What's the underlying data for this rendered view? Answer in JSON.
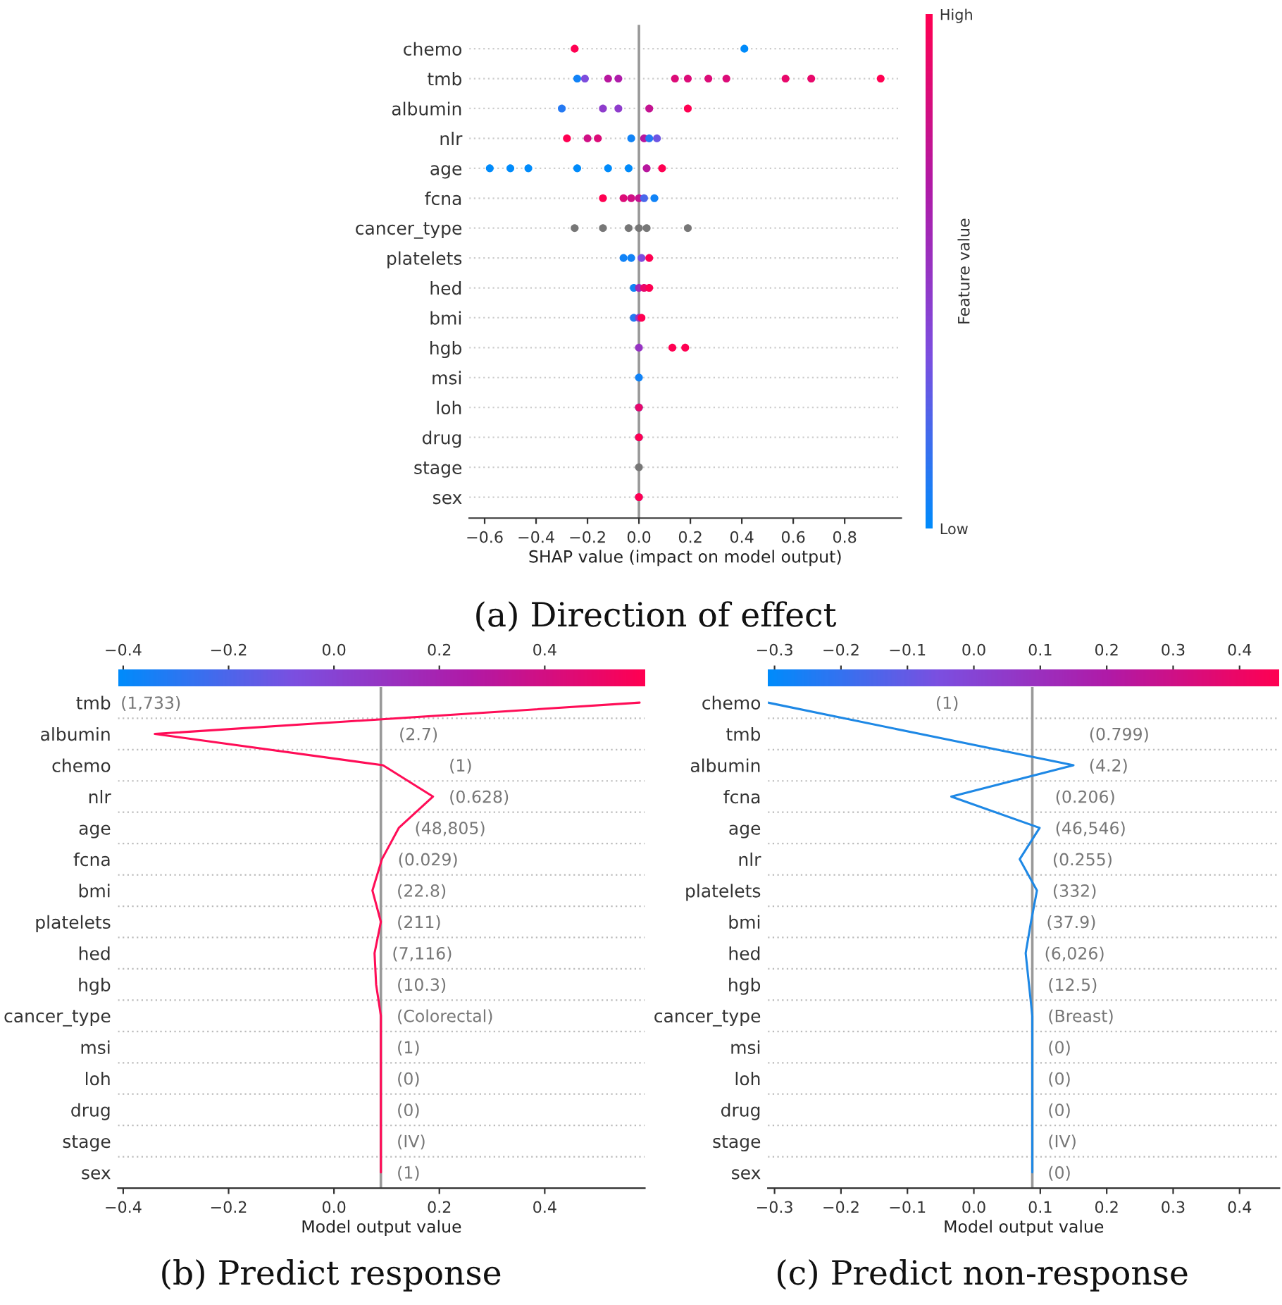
{
  "chart_data": [
    {
      "type": "scatter",
      "orientation": "horizontal",
      "title": "(a) Direction of effect",
      "xlabel": "SHAP value (impact on model output)",
      "clabel": "Feature value",
      "categories": [
        "chemo",
        "tmb",
        "albumin",
        "nlr",
        "age",
        "fcna",
        "cancer_type",
        "platelets",
        "hed",
        "bmi",
        "hgb",
        "msi",
        "loh",
        "drug",
        "stage",
        "sex"
      ],
      "series": [
        {
          "x": [
            "chemo",
            "chemo",
            "tmb",
            "tmb",
            "tmb",
            "tmb",
            "tmb",
            "tmb",
            "tmb",
            "tmb",
            "tmb",
            "tmb",
            "tmb",
            "albumin",
            "albumin",
            "albumin",
            "albumin",
            "albumin",
            "nlr",
            "nlr",
            "nlr",
            "nlr",
            "nlr",
            "nlr",
            "nlr",
            "age",
            "age",
            "age",
            "age",
            "age",
            "age",
            "age",
            "age",
            "fcna",
            "fcna",
            "fcna",
            "fcna",
            "fcna",
            "fcna",
            "cancer_type",
            "cancer_type",
            "cancer_type",
            "cancer_type",
            "cancer_type",
            "cancer_type",
            "platelets",
            "platelets",
            "platelets",
            "platelets",
            "hed",
            "hed",
            "hed",
            "hed",
            "bmi",
            "bmi",
            "bmi",
            "hgb",
            "hgb",
            "hgb",
            "msi",
            "loh",
            "loh",
            "drug",
            "drug",
            "stage",
            "sex",
            "sex"
          ],
          "values": [
            -0.25,
            0.41,
            -0.24,
            -0.21,
            -0.12,
            -0.08,
            0.14,
            0.19,
            0.27,
            0.34,
            0.57,
            0.67,
            0.94,
            -0.3,
            -0.14,
            -0.08,
            0.04,
            0.19,
            -0.28,
            -0.2,
            -0.16,
            -0.03,
            0.02,
            0.04,
            0.07,
            -0.58,
            -0.5,
            -0.43,
            -0.24,
            -0.12,
            -0.04,
            0.03,
            0.09,
            -0.14,
            -0.06,
            -0.03,
            0.0,
            0.02,
            0.06,
            -0.25,
            -0.14,
            -0.04,
            0.0,
            0.03,
            0.19,
            -0.06,
            -0.03,
            0.01,
            0.04,
            -0.02,
            0.0,
            0.02,
            0.04,
            -0.02,
            0.0,
            0.01,
            0.0,
            0.13,
            0.18,
            0.0,
            0.0,
            0.0,
            0.0,
            0.0,
            0.0,
            0.0,
            0.0
          ],
          "cvalues": [
            1,
            0,
            0.05,
            0.35,
            0.7,
            0.65,
            0.85,
            0.85,
            0.85,
            0.85,
            0.9,
            0.9,
            1,
            0.1,
            0.45,
            0.45,
            0.75,
            1,
            1,
            0.8,
            0.85,
            0.05,
            0.7,
            0.1,
            0.3,
            0,
            0,
            0,
            0,
            0,
            0,
            0.7,
            1,
            1,
            0.85,
            0.8,
            0.75,
            0.2,
            0.05,
            null,
            null,
            null,
            null,
            null,
            null,
            0.05,
            0.05,
            0.35,
            1,
            0.05,
            0.6,
            0.9,
            1,
            0.1,
            0.5,
            1,
            0.5,
            1,
            1,
            0.05,
            0.05,
            0.9,
            0.05,
            1,
            null,
            0.3,
            1
          ]
        }
      ],
      "xlim": [
        -0.66,
        1.02
      ],
      "xticks": [
        {
          "value": -0.6,
          "label": "−0.6"
        },
        {
          "value": -0.4,
          "label": "−0.4"
        },
        {
          "value": -0.2,
          "label": "−0.2"
        },
        {
          "value": 0,
          "label": "0.0"
        },
        {
          "value": 0.2,
          "label": "0.2"
        },
        {
          "value": 0.4,
          "label": "0.4"
        },
        {
          "value": 0.6,
          "label": "0.6"
        },
        {
          "value": 0.8,
          "label": "0.8"
        }
      ],
      "clim": [
        0,
        1
      ],
      "cticks": [
        {
          "value": 0,
          "label": "Low"
        },
        {
          "value": 1,
          "label": "High"
        }
      ],
      "ref_lines": [
        {
          "axis": "x",
          "value": 0,
          "color": "#999999"
        }
      ],
      "grid": "y",
      "marker": "circle"
    },
    {
      "type": "line",
      "orientation": "horizontal",
      "title": "(b) Predict response",
      "xlabel": "Model output value",
      "categories": [
        "tmb",
        "albumin",
        "chemo",
        "nlr",
        "age",
        "fcna",
        "bmi",
        "platelets",
        "hed",
        "hgb",
        "cancer_type",
        "msi",
        "loh",
        "drug",
        "stage",
        "sex"
      ],
      "series": [
        {
          "color": "#ff0d57",
          "values": [
            0.58,
            -0.34,
            0.093,
            0.188,
            0.123,
            0.091,
            0.073,
            0.089,
            0.077,
            0.08,
            0.089,
            0.089,
            0.089,
            0.089,
            0.089,
            0.089
          ]
        }
      ],
      "xlim": [
        -0.41,
        0.59
      ],
      "xticks": [
        {
          "value": -0.4,
          "label": "−0.4"
        },
        {
          "value": -0.2,
          "label": "−0.2"
        },
        {
          "value": 0,
          "label": "0.0"
        },
        {
          "value": 0.2,
          "label": "0.2"
        },
        {
          "value": 0.4,
          "label": "0.4"
        }
      ],
      "clim": [
        -0.41,
        0.59
      ],
      "cticks": [
        {
          "value": -0.4,
          "label": "−0.4"
        },
        {
          "value": -0.2,
          "label": "−0.2"
        },
        {
          "value": 0,
          "label": "0.0"
        },
        {
          "value": 0.2,
          "label": "0.2"
        },
        {
          "value": 0.4,
          "label": "0.4"
        }
      ],
      "ref_lines": [
        {
          "axis": "x",
          "value": 0.089,
          "color": "#999999"
        }
      ],
      "annotations": [
        "(1,733)",
        "(2.7)",
        "(1)",
        "(0.628)",
        "(48,805)",
        "(0.029)",
        "(22.8)",
        "(211)",
        "(7,116)",
        "(10.3)",
        "(Colorectal)",
        "(1)",
        "(0)",
        "(0)",
        "(IV)",
        "(1)"
      ],
      "grid": "y"
    },
    {
      "type": "line",
      "orientation": "horizontal",
      "title": "(c) Predict non-response",
      "xlabel": "Model output value",
      "categories": [
        "chemo",
        "tmb",
        "albumin",
        "fcna",
        "age",
        "nlr",
        "platelets",
        "bmi",
        "hed",
        "hgb",
        "cancer_type",
        "msi",
        "loh",
        "drug",
        "stage",
        "sex"
      ],
      "series": [
        {
          "color": "#1e88e5",
          "values": [
            -0.31,
            -0.081,
            0.15,
            -0.034,
            0.099,
            0.069,
            0.095,
            0.086,
            0.078,
            0.083,
            0.088,
            0.088,
            0.088,
            0.088,
            0.088,
            0.088
          ]
        }
      ],
      "xlim": [
        -0.31,
        0.46
      ],
      "xticks": [
        {
          "value": -0.3,
          "label": "−0.3"
        },
        {
          "value": -0.2,
          "label": "−0.2"
        },
        {
          "value": -0.1,
          "label": "−0.1"
        },
        {
          "value": 0,
          "label": "0.0"
        },
        {
          "value": 0.1,
          "label": "0.1"
        },
        {
          "value": 0.2,
          "label": "0.2"
        },
        {
          "value": 0.3,
          "label": "0.3"
        },
        {
          "value": 0.4,
          "label": "0.4"
        }
      ],
      "clim": [
        -0.31,
        0.46
      ],
      "cticks": [
        {
          "value": -0.3,
          "label": "−0.3"
        },
        {
          "value": -0.2,
          "label": "−0.2"
        },
        {
          "value": -0.1,
          "label": "−0.1"
        },
        {
          "value": 0,
          "label": "0.0"
        },
        {
          "value": 0.1,
          "label": "0.1"
        },
        {
          "value": 0.2,
          "label": "0.2"
        },
        {
          "value": 0.3,
          "label": "0.3"
        },
        {
          "value": 0.4,
          "label": "0.4"
        }
      ],
      "ref_lines": [
        {
          "axis": "x",
          "value": 0.088,
          "color": "#999999"
        }
      ],
      "annotations": [
        "(1)",
        "(0.799)",
        "(4.2)",
        "(0.206)",
        "(46,546)",
        "(0.255)",
        "(332)",
        "(37.9)",
        "(6,026)",
        "(12.5)",
        "(Breast)",
        "(0)",
        "(0)",
        "(0)",
        "(IV)",
        "(0)"
      ],
      "grid": "y"
    }
  ]
}
